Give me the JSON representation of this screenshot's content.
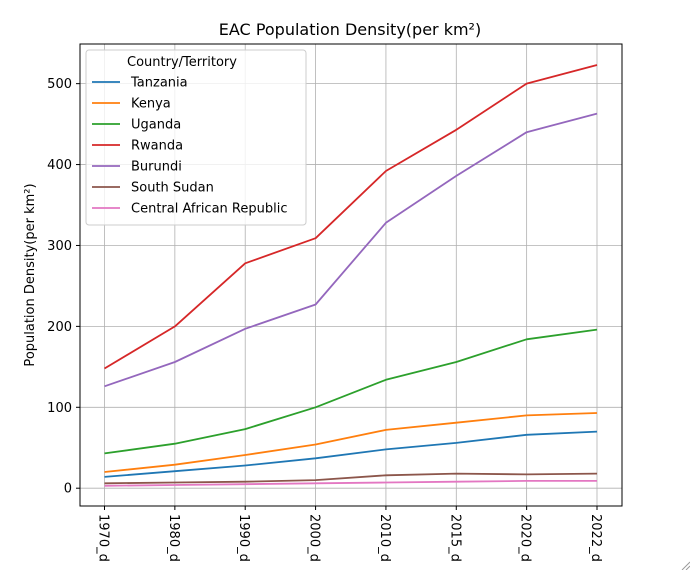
{
  "chart_data": {
    "type": "line",
    "title": "EAC Population Density(per km²)",
    "xlabel": "",
    "ylabel": "Population Density(per km²)",
    "categories": [
      "1970_d",
      "1980_d",
      "1990_d",
      "2000_d",
      "2010_d",
      "2015_d",
      "2020_d",
      "2022_d"
    ],
    "ylim": [
      -22,
      549
    ],
    "yticks": [
      0,
      100,
      200,
      300,
      400,
      500
    ],
    "grid": true,
    "legend": {
      "title": "Country/Territory",
      "placement": "upper-left"
    },
    "series": [
      {
        "name": "Tanzania",
        "color": "#1f77b4",
        "values": [
          14,
          21,
          28,
          37,
          48,
          56,
          66,
          70
        ]
      },
      {
        "name": "Kenya",
        "color": "#ff7f0e",
        "values": [
          20,
          29,
          41,
          54,
          72,
          81,
          90,
          93
        ]
      },
      {
        "name": "Uganda",
        "color": "#2ca02c",
        "values": [
          43,
          55,
          73,
          100,
          134,
          156,
          184,
          196
        ]
      },
      {
        "name": "Rwanda",
        "color": "#d62728",
        "values": [
          148,
          200,
          278,
          309,
          392,
          443,
          500,
          523
        ]
      },
      {
        "name": "Burundi",
        "color": "#9467bd",
        "values": [
          126,
          156,
          197,
          227,
          328,
          386,
          440,
          463
        ]
      },
      {
        "name": "South Sudan",
        "color": "#8c564b",
        "values": [
          6,
          7,
          8,
          10,
          16,
          18,
          17,
          18
        ]
      },
      {
        "name": "Central African Republic",
        "color": "#e377c2",
        "values": [
          3,
          4,
          5,
          6,
          7,
          8,
          9,
          9
        ]
      }
    ]
  }
}
